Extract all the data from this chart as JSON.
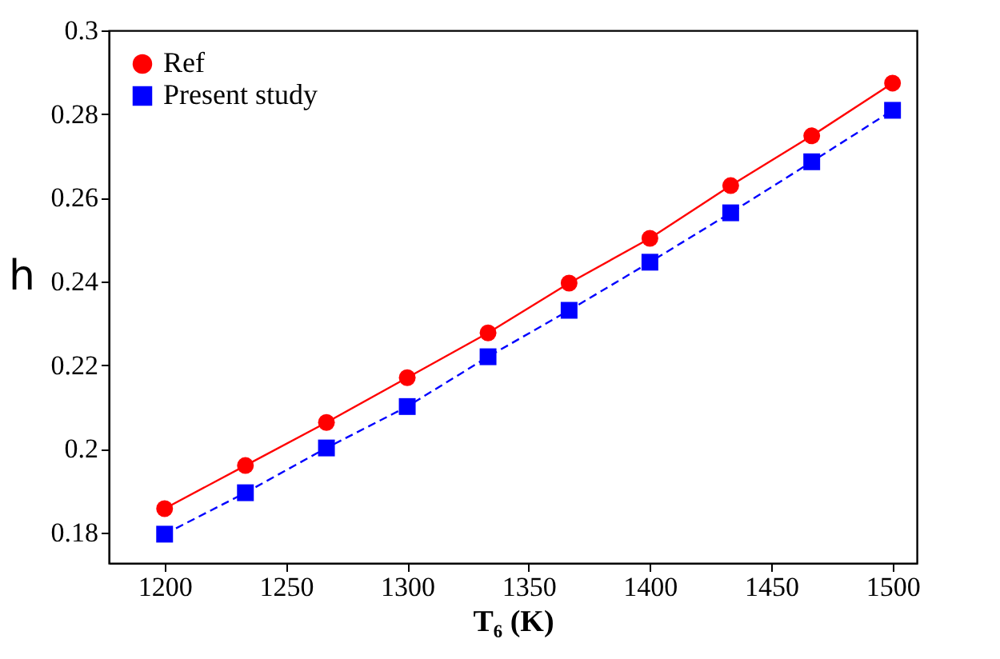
{
  "chart_data": {
    "type": "line",
    "xlabel": "T₆ (K)",
    "ylabel": "h",
    "x": [
      1200,
      1233.3,
      1266.7,
      1300,
      1333.3,
      1366.7,
      1400,
      1433.3,
      1466.7,
      1500
    ],
    "series": [
      {
        "name": "Ref",
        "color": "#ff0000",
        "marker": "circle",
        "line_style": "solid",
        "values": [
          0.1857,
          0.196,
          0.2063,
          0.217,
          0.2277,
          0.2396,
          0.2503,
          0.2629,
          0.2748,
          0.2874
        ]
      },
      {
        "name": "Present study",
        "color": "#0000ff",
        "marker": "square",
        "line_style": "dashed",
        "values": [
          0.1796,
          0.1895,
          0.2002,
          0.2101,
          0.222,
          0.2331,
          0.2446,
          0.2564,
          0.2686,
          0.2809
        ]
      }
    ],
    "xlim": [
      1177,
      1510
    ],
    "xticks": [
      1200,
      1250,
      1300,
      1350,
      1400,
      1450,
      1500
    ],
    "ylim": [
      0.1727,
      0.3
    ],
    "yticks": [
      0.18,
      0.2,
      0.22,
      0.24,
      0.26,
      0.28,
      0.3
    ],
    "grid": false,
    "legend": "top left"
  }
}
